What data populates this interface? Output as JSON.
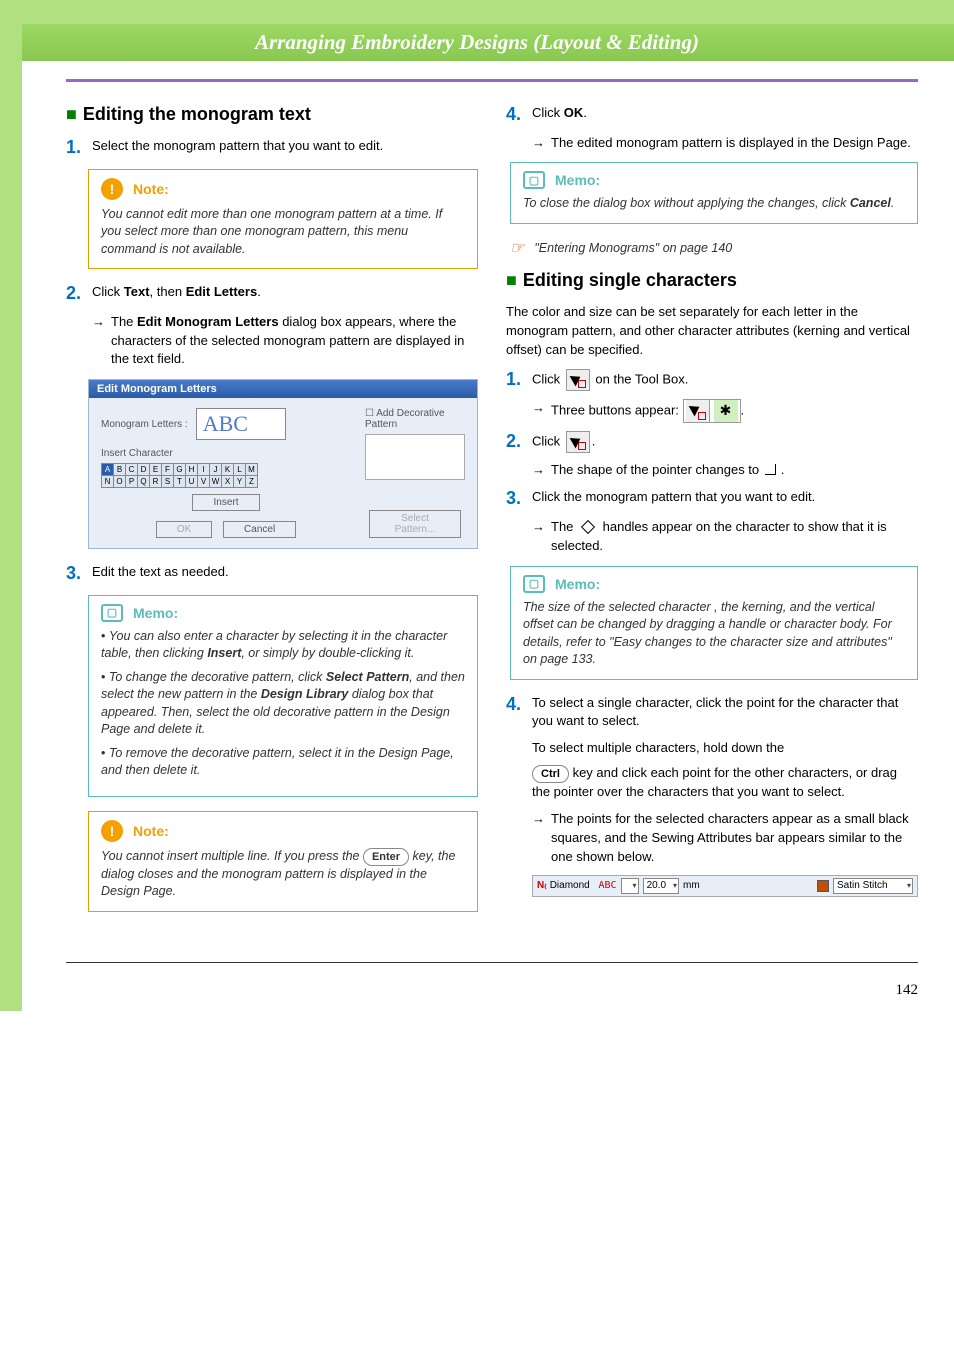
{
  "header": {
    "title": "Arranging Embroidery Designs (Layout & Editing)"
  },
  "page_number": "142",
  "left": {
    "section_title": "Editing the monogram text",
    "step1": {
      "num": "1",
      "text": "Select the monogram pattern that you want to edit."
    },
    "note1": {
      "title": "Note:",
      "body": "You cannot edit more than one monogram pattern at a time. If you select more than one monogram pattern, this menu command is not available."
    },
    "step2": {
      "num": "2",
      "pre": "Click ",
      "b1": "Text",
      "mid": ", then ",
      "b2": "Edit Letters",
      "post": "."
    },
    "step2_arrow": {
      "pre": "The ",
      "b": "Edit Monogram Letters",
      "post": " dialog box appears, where the characters of the selected monogram pattern are displayed in the text field."
    },
    "dialog": {
      "title": "Edit Monogram Letters",
      "label": "Monogram Letters :",
      "value": "ABC",
      "insert_label": "Insert Character",
      "add_dec": "Add Decorative Pattern",
      "insert_btn": "Insert",
      "select_btn": "Select Pattern...",
      "ok": "OK",
      "cancel": "Cancel",
      "row1": [
        "A",
        "B",
        "C",
        "D",
        "E",
        "F",
        "G",
        "H",
        "I",
        "J",
        "K",
        "L",
        "M"
      ],
      "row2": [
        "N",
        "O",
        "P",
        "Q",
        "R",
        "S",
        "T",
        "U",
        "V",
        "W",
        "X",
        "Y",
        "Z"
      ]
    },
    "step3": {
      "num": "3",
      "text": "Edit the text as needed."
    },
    "memo1": {
      "title": "Memo:",
      "items_html": [
        "You can also enter a character by selecting it in the character table, then clicking <b>Insert</b>, or simply by double-clicking it.",
        "To change the decorative pattern, click <b>Select Pattern</b>, and then select the new pattern in the <b>Design Library</b> dialog box that appeared. Then, select the old decorative pattern in the Design Page and delete it.",
        "To remove the decorative pattern, select it in the Design Page, and then delete it."
      ]
    },
    "note2": {
      "title": "Note:",
      "body_pre": "You cannot insert multiple line. If you press the ",
      "key": "Enter",
      "body_post": " key, the dialog closes and the monogram pattern is displayed in the Design Page."
    }
  },
  "right": {
    "step4a": {
      "num": "4",
      "pre": "Click ",
      "b": "OK",
      "post": "."
    },
    "step4a_arrow": "The edited monogram pattern is displayed in the Design Page.",
    "memo2": {
      "title": "Memo:",
      "body_pre": "To close the dialog box without applying the changes, click ",
      "b": "Cancel",
      "body_post": "."
    },
    "ref": "\"Entering Monograms\" on page 140",
    "section_title": "Editing single characters",
    "intro": "The color and size can be set separately for each letter in the monogram pattern, and other character attributes (kerning and vertical offset) can be specified.",
    "step1": {
      "num": "1",
      "pre": "Click ",
      "post": " on the Tool Box."
    },
    "step1_arrow": "Three buttons appear:",
    "step2": {
      "num": "2",
      "pre": "Click ",
      "post": "."
    },
    "step2_arrow": "The shape of the pointer changes to",
    "step3": {
      "num": "3",
      "text": "Click the monogram pattern that you want to edit."
    },
    "step3_arrow_pre": "The ",
    "step3_arrow_post": " handles appear on the character to show that it is selected.",
    "memo3": {
      "title": "Memo:",
      "body": "The size of the selected character , the kerning, and the vertical offset can be changed by dragging a handle or character body. For details, refer to \"Easy changes to the character size and attributes\" on page 133."
    },
    "step4": {
      "num": "4",
      "line1": "To select a single character, click the point for the character that you want to select.",
      "line2": "To select multiple characters, hold down the",
      "key": "Ctrl",
      "line3": " key and click each point for the other characters, or drag the pointer over the characters that you want to select."
    },
    "step4_arrow": "The points for the selected characters appear as a small black squares, and the Sewing Attributes bar appears similar to the one shown below.",
    "attrbar": {
      "font": "Diamond",
      "abc": "ABC",
      "size": "20.0",
      "unit": "mm",
      "stitch": "Satin Stitch"
    }
  }
}
